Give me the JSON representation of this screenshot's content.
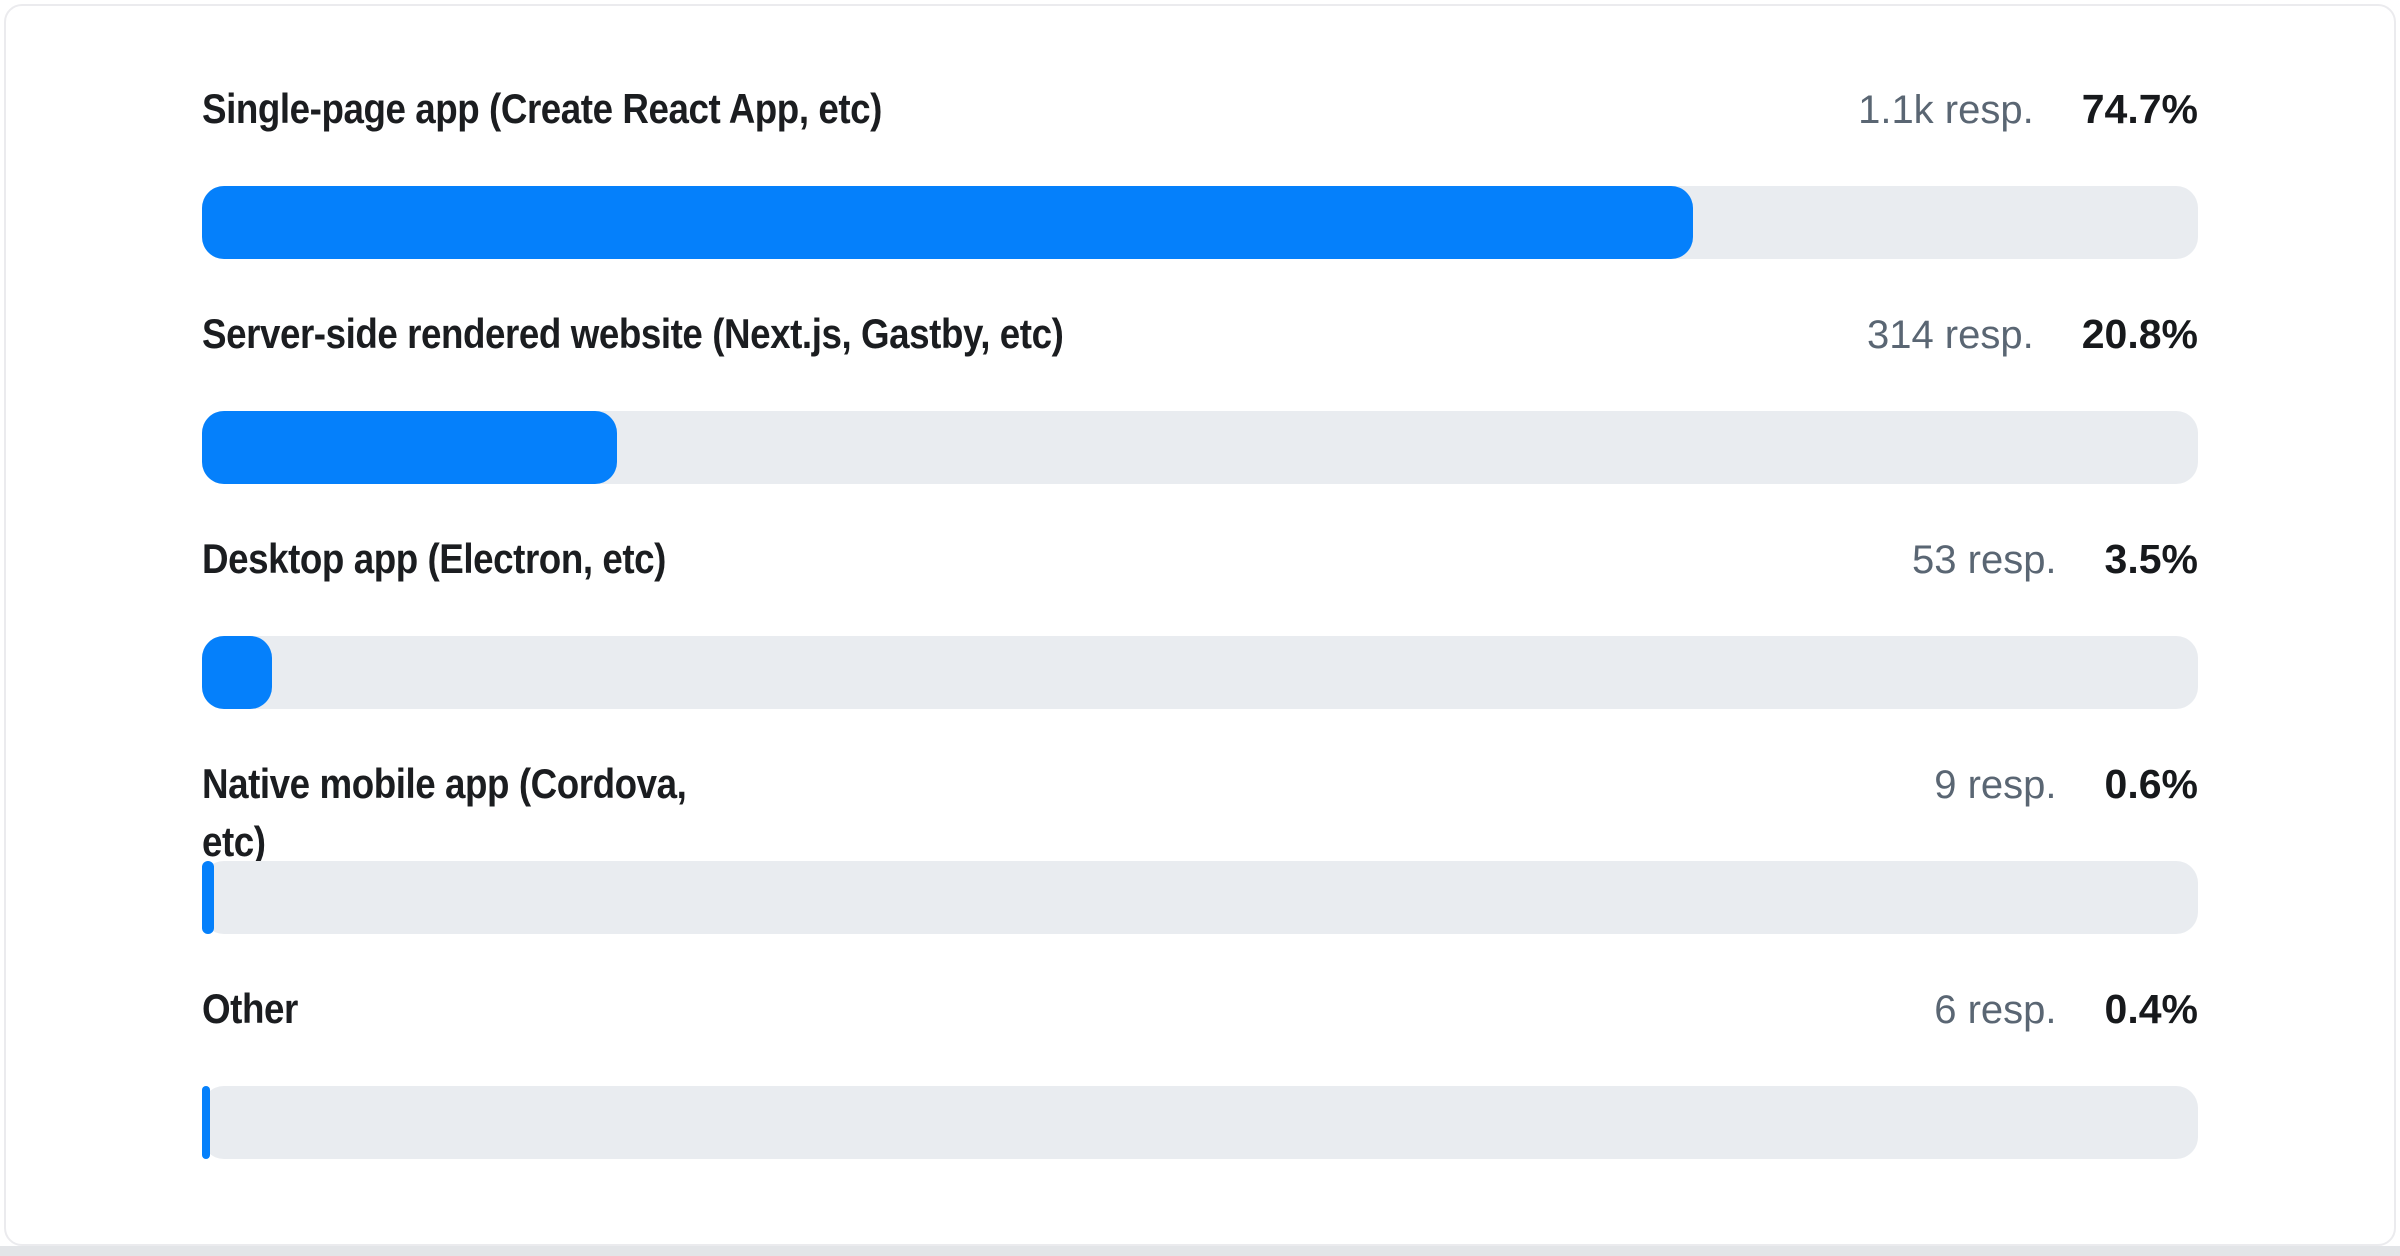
{
  "colors": {
    "bar_fill": "#0580fb",
    "bar_track": "#e9ecf0",
    "label_text": "#1b1d20",
    "resp_text": "#5a6673",
    "pct_text": "#17191c",
    "card_border": "#ebebee",
    "page_strip": "#e3e5e8"
  },
  "chart_data": {
    "type": "bar",
    "orientation": "horizontal",
    "title": "",
    "xlabel": "",
    "ylabel": "",
    "xlim": [
      0,
      100
    ],
    "unit": "%",
    "grid": false,
    "legend": false,
    "categories": [
      "Single-page app (Create React App, etc)",
      "Server-side rendered website (Next.js, Gastby, etc)",
      "Desktop app (Electron, etc)",
      "Native mobile app (Cordova, etc)",
      "Other"
    ],
    "values": [
      74.7,
      20.8,
      3.5,
      0.6,
      0.4
    ],
    "response_counts": [
      "1.1k",
      "314",
      "53",
      "9",
      "6"
    ]
  },
  "rows": [
    {
      "label": "Single-page app (Create React App, etc)",
      "responses": "1.1k resp.",
      "percent_label": "74.7%",
      "percent_value": 74.7
    },
    {
      "label": "Server-side rendered website (Next.js, Gastby, etc)",
      "responses": "314 resp.",
      "percent_label": "20.8%",
      "percent_value": 20.8
    },
    {
      "label": "Desktop app (Electron, etc)",
      "responses": "53 resp.",
      "percent_label": "3.5%",
      "percent_value": 3.5
    },
    {
      "label": "Native mobile app (Cordova,\netc)",
      "responses": "9 resp.",
      "percent_label": "0.6%",
      "percent_value": 0.6
    },
    {
      "label": "Other",
      "responses": "6 resp.",
      "percent_label": "0.4%",
      "percent_value": 0.4
    }
  ]
}
